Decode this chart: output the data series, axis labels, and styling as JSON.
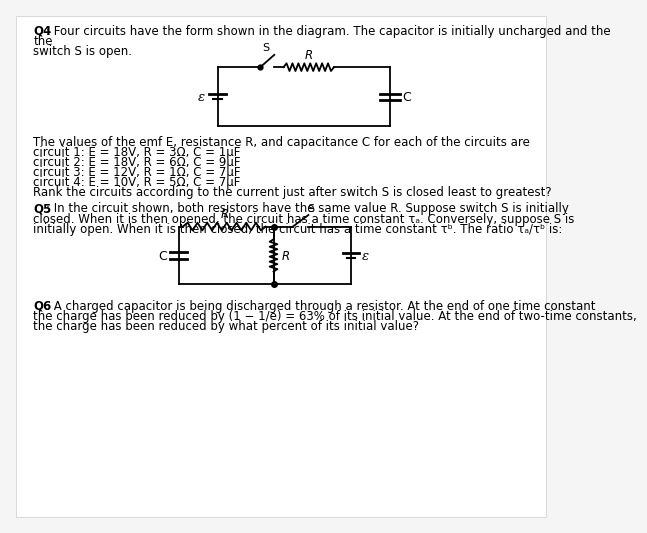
{
  "bg_color": "#f5f5f5",
  "page_bg": "#ffffff",
  "text_color": "#000000",
  "font_size_body": 8.5,
  "q4_line1": "Q4: Four circuits have the form shown in the diagram. The capacitor is initially uncharged and the",
  "q4_line2": "the",
  "q4_line3": "switch S is open.",
  "q4_values_intro": "The values of the emf E, resistance R, and capacitance C for each of the circuits are",
  "q4_circuits": [
    "circuit 1: E = 18V, R = 3Ω, C = 1μF",
    "circuit 2: E = 18V, R = 6Ω, C = 9μF",
    "circuit 3: E = 12V, R = 1Ω, C = 7μF",
    "circuit 4: E = 10V, R = 5Ω, C = 7μF"
  ],
  "q4_rank": "Rank the circuits according to the current just after switch S is closed least to greatest?",
  "q5_line1": "Q5: In the circuit shown, both resistors have the same value R. Suppose switch S is initially",
  "q5_line2": "closed. When it is then opened, the circuit has a time constant τa. Conversely, suppose S is",
  "q5_line3": "initially open. When it is then closed, the circuit has a time constant τb. The ratio τa/τb is:",
  "q6_line1": "Q6: A charged capacitor is being discharged through a resistor. At the end of one time constant",
  "q6_line2": "the charge has been reduced by (1 − 1/e) = 63% of its initial value. At the end of two-time constants,",
  "q6_line3": "the charge has been reduced by what percent of its initial value?"
}
